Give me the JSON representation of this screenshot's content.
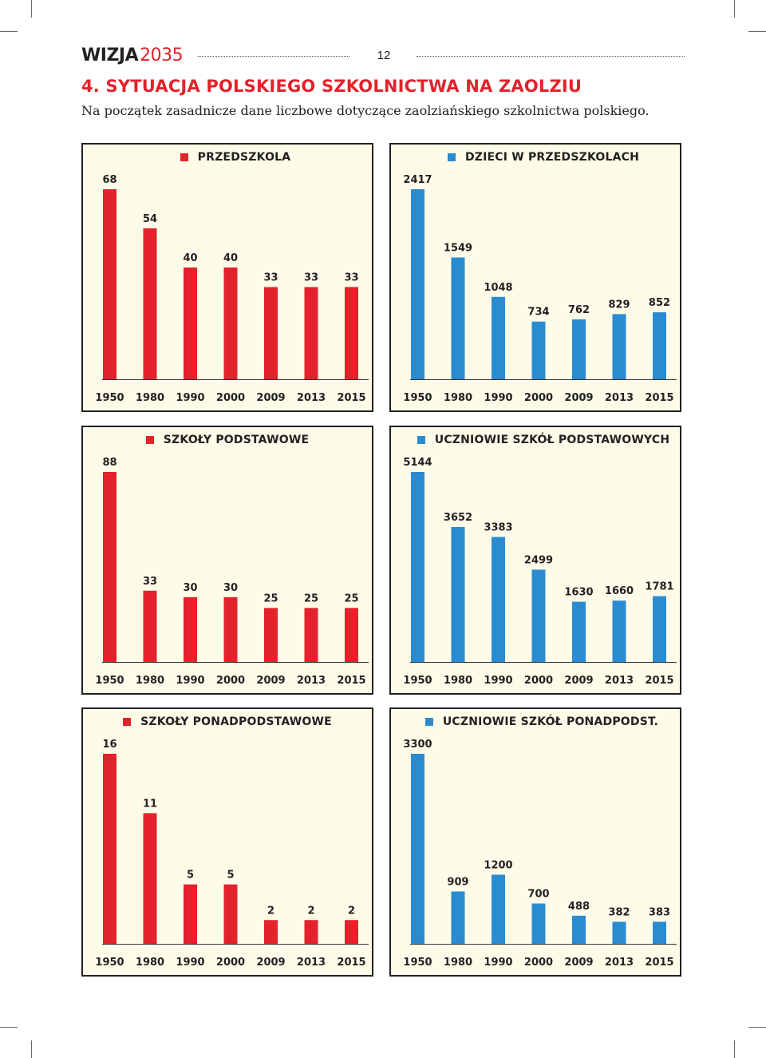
{
  "header": {
    "logo_text_1": "WIZJA",
    "logo_text_2": "2035",
    "page_number": "12"
  },
  "section": {
    "title": "4. SYTUACJA POLSKIEGO SZKOLNICTWA NA ZAOLZIU",
    "intro": "Na początek zasadnicze dane liczbowe dotyczące zaolziańskiego szkolnictwa polskiego."
  },
  "colors": {
    "red": "#e3222b",
    "blue": "#2a8bd0",
    "panel_bg": "#fefbe9"
  },
  "chart_data": [
    {
      "type": "bar",
      "title": "PRZEDSZKOLA",
      "color": "#e3222b",
      "categories": [
        "1950",
        "1980",
        "1990",
        "2000",
        "2009",
        "2013",
        "2015"
      ],
      "values": [
        68,
        54,
        40,
        40,
        33,
        33,
        33
      ],
      "ylim": [
        0,
        68
      ],
      "grid": false
    },
    {
      "type": "bar",
      "title": "DZIECI W PRZEDSZKOLACH",
      "color": "#2a8bd0",
      "categories": [
        "1950",
        "1980",
        "1990",
        "2000",
        "2009",
        "2013",
        "2015"
      ],
      "values": [
        2417,
        1549,
        1048,
        734,
        762,
        829,
        852
      ],
      "ylim": [
        0,
        2417
      ],
      "grid": false
    },
    {
      "type": "bar",
      "title": "SZKOŁY PODSTAWOWE",
      "color": "#e3222b",
      "categories": [
        "1950",
        "1980",
        "1990",
        "2000",
        "2009",
        "2013",
        "2015"
      ],
      "values": [
        88,
        33,
        30,
        30,
        25,
        25,
        25
      ],
      "ylim": [
        0,
        88
      ],
      "grid": false
    },
    {
      "type": "bar",
      "title": "UCZNIOWIE SZKÓŁ PODSTAWOWYCH",
      "color": "#2a8bd0",
      "categories": [
        "1950",
        "1980",
        "1990",
        "2000",
        "2009",
        "2013",
        "2015"
      ],
      "values": [
        5144,
        3652,
        3383,
        2499,
        1630,
        1660,
        1781
      ],
      "ylim": [
        0,
        5144
      ],
      "grid": false
    },
    {
      "type": "bar",
      "title": "SZKOŁY PONADPODSTAWOWE",
      "color": "#e3222b",
      "categories": [
        "1950",
        "1980",
        "1990",
        "2000",
        "2009",
        "2013",
        "2015"
      ],
      "values": [
        16,
        11,
        5,
        5,
        2,
        2,
        2
      ],
      "ylim": [
        0,
        16
      ],
      "grid": false
    },
    {
      "type": "bar",
      "title": "UCZNIOWIE SZKÓŁ PONADPODST.",
      "color": "#2a8bd0",
      "categories": [
        "1950",
        "1980",
        "1990",
        "2000",
        "2009",
        "2013",
        "2015"
      ],
      "values": [
        3300,
        909,
        1200,
        700,
        488,
        382,
        383
      ],
      "ylim": [
        0,
        3300
      ],
      "grid": false
    }
  ]
}
